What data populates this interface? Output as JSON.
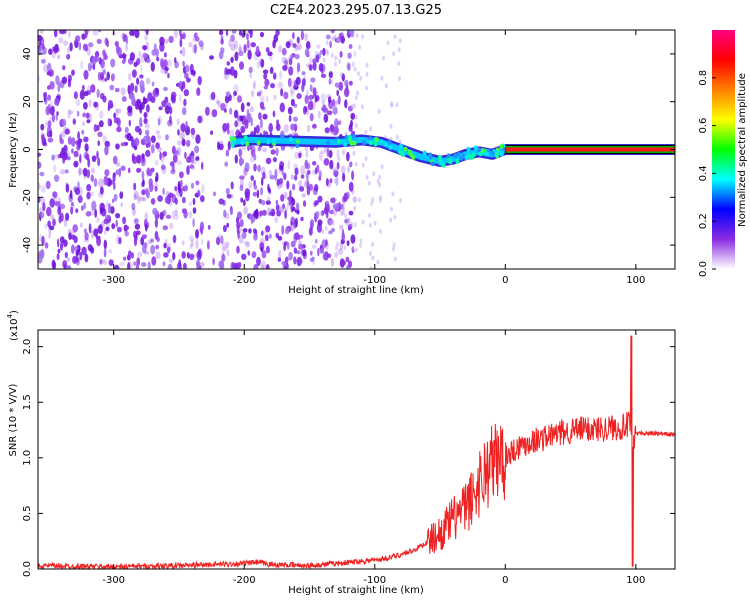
{
  "title": "C2E4.2023.295.07.13.G25",
  "chart_data": [
    {
      "type": "heatmap",
      "xlabel": "Height of straight line (km)",
      "ylabel": "Frequency (Hz)",
      "xlim": [
        -358,
        130
      ],
      "ylim": [
        -50,
        50
      ],
      "xticks": [
        -300,
        -200,
        -100,
        0,
        100
      ],
      "xtick_labels": [
        "-300",
        "-200",
        "-100",
        "0",
        "100"
      ],
      "yticks": [
        -40,
        -20,
        0,
        20,
        40
      ],
      "ytick_labels": [
        "-40",
        "-20",
        "0",
        "20",
        "40"
      ],
      "colorbar": {
        "label": "Normalized spectral amplitude",
        "range": [
          0,
          1
        ],
        "ticks": [
          0.0,
          0.2,
          0.4,
          0.6,
          0.8
        ],
        "tick_labels": [
          "0.0",
          "0.2",
          "0.4",
          "0.6",
          "0.8"
        ],
        "colors": [
          "#ffffff",
          "#8a2be2",
          "#0000ff",
          "#00ffff",
          "#00ff00",
          "#ffff00",
          "#ff8000",
          "#ff0000",
          "#ff0080"
        ]
      },
      "dominant_tone": [
        {
          "x": -210,
          "y": 3
        },
        {
          "x": -195,
          "y": 4
        },
        {
          "x": -130,
          "y": 3
        },
        {
          "x": -110,
          "y": 4
        },
        {
          "x": -95,
          "y": 3
        },
        {
          "x": -80,
          "y": 0
        },
        {
          "x": -65,
          "y": -3
        },
        {
          "x": -50,
          "y": -5
        },
        {
          "x": -40,
          "y": -4
        },
        {
          "x": -30,
          "y": -2
        },
        {
          "x": -20,
          "y": -1
        },
        {
          "x": -10,
          "y": -2
        },
        {
          "x": 0,
          "y": 0
        },
        {
          "x": 130,
          "y": 0
        }
      ],
      "noise_region_xlim": [
        -358,
        -115
      ],
      "grid": false
    },
    {
      "type": "line",
      "xlabel": "Height of straight line (km)",
      "ylabel": "SNR (10 * V/V)",
      "yscale_label": "(x10",
      "yscale_exponent": "4",
      "xlim": [
        -358,
        130
      ],
      "ylim": [
        0,
        2.15
      ],
      "xticks": [
        -300,
        -200,
        -100,
        0,
        100
      ],
      "xtick_labels": [
        "-300",
        "-200",
        "-100",
        "0",
        "100"
      ],
      "yticks": [
        0.0,
        0.5,
        1.0,
        1.5,
        2.0
      ],
      "ytick_labels": [
        "0.0",
        "0.5",
        "1.0",
        "1.5",
        "2.0"
      ],
      "series": [
        {
          "color": "#ee2222",
          "x": [
            -358,
            -300,
            -250,
            -200,
            -190,
            -180,
            -150,
            -120,
            -100,
            -90,
            -80,
            -70,
            -60,
            -50,
            -40,
            -30,
            -25,
            -20,
            -15,
            -10,
            0,
            10,
            20,
            30,
            40,
            50,
            60,
            70,
            80,
            90,
            95,
            98,
            100,
            102,
            110,
            130
          ],
          "y": [
            0.03,
            0.02,
            0.03,
            0.05,
            0.06,
            0.04,
            0.03,
            0.06,
            0.08,
            0.1,
            0.13,
            0.17,
            0.24,
            0.32,
            0.45,
            0.55,
            0.65,
            0.78,
            0.88,
            0.95,
            1.02,
            1.1,
            1.15,
            1.18,
            1.22,
            1.24,
            1.26,
            1.26,
            1.27,
            1.28,
            1.3,
            1.1,
            1.22,
            1.22,
            1.22,
            1.21
          ]
        }
      ],
      "grid": false
    }
  ]
}
